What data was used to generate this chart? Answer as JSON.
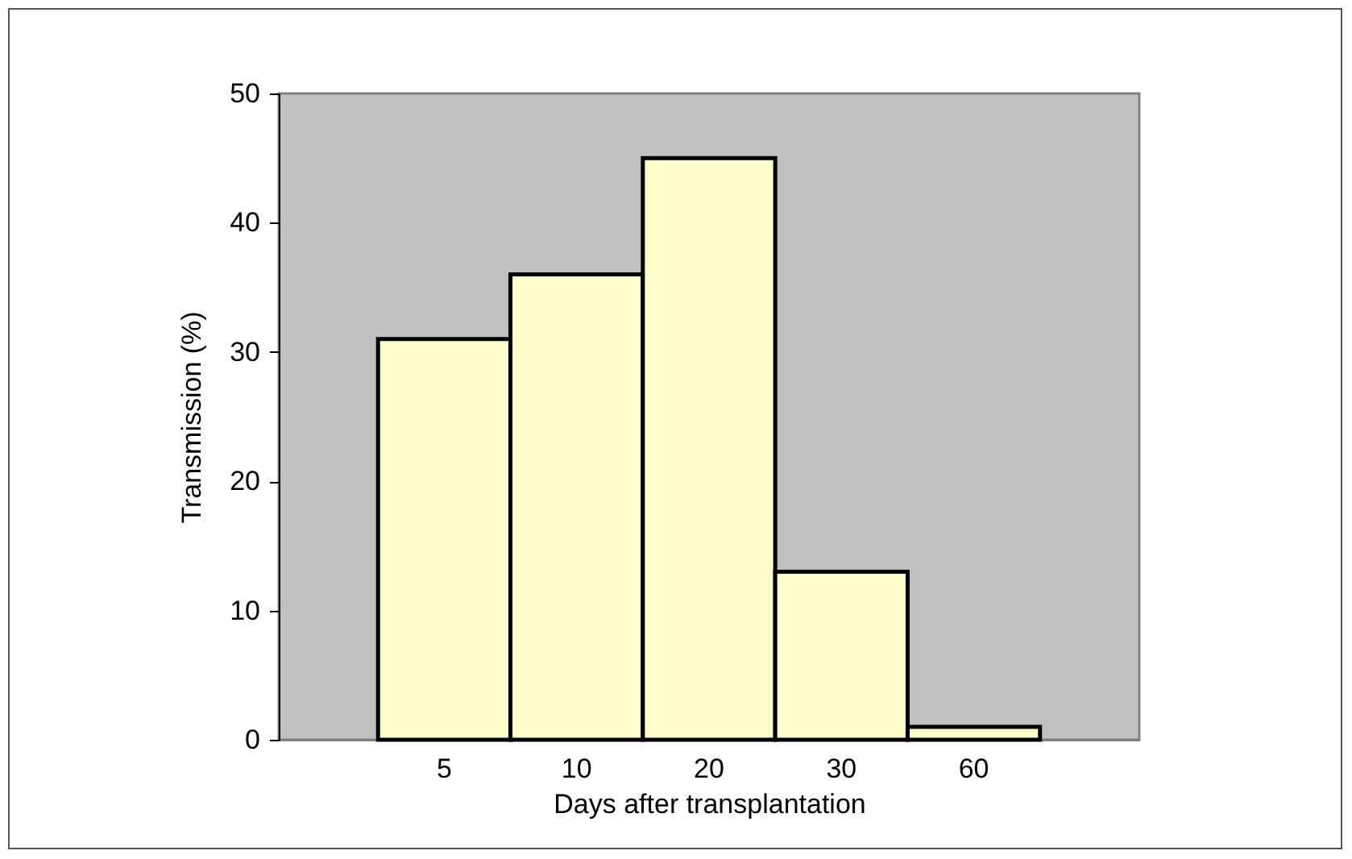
{
  "chart_data": {
    "type": "bar",
    "xlabel": "Days after transplantation",
    "ylabel": "Transmission (%)",
    "categories": [
      "5",
      "10",
      "20",
      "30",
      "60"
    ],
    "values": [
      31,
      36,
      45,
      13,
      1
    ],
    "color": "#ffffcc",
    "ylim": [
      0,
      50
    ],
    "yticks": [
      0,
      10,
      20,
      30,
      40,
      50
    ],
    "grid": false
  }
}
